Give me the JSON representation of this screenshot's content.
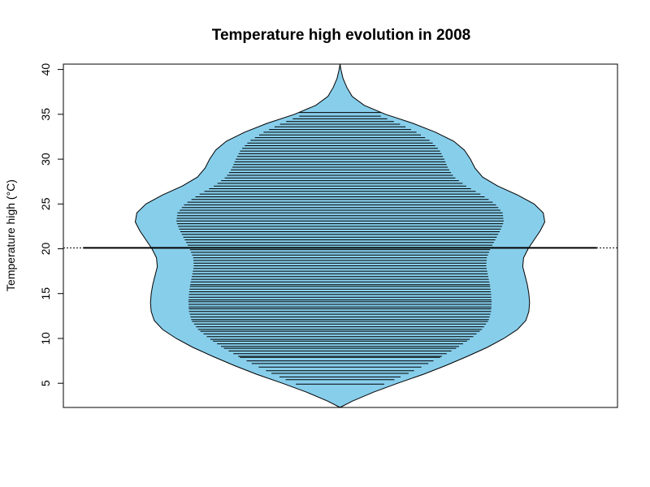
{
  "chart_data": {
    "type": "beanplot",
    "title": "Temperature high evolution in 2008",
    "ylabel": "Temperature high (°C)",
    "ylim": [
      2.3,
      40.6
    ],
    "yticks": [
      5,
      10,
      15,
      20,
      25,
      30,
      35,
      40
    ],
    "mean": 20.1,
    "colors": {
      "fill": "#87CEEB",
      "outline": "#000000",
      "lines": "#000000"
    },
    "density": [
      [
        2.3,
        0.0
      ],
      [
        3.0,
        0.08
      ],
      [
        4.0,
        0.22
      ],
      [
        5.0,
        0.38
      ],
      [
        6.0,
        0.55
      ],
      [
        7.0,
        0.7
      ],
      [
        8.0,
        0.84
      ],
      [
        9.0,
        0.97
      ],
      [
        10.0,
        1.08
      ],
      [
        11.0,
        1.17
      ],
      [
        12.0,
        1.225
      ],
      [
        13.0,
        1.245
      ],
      [
        14.0,
        1.25
      ],
      [
        15.0,
        1.245
      ],
      [
        16.0,
        1.235
      ],
      [
        17.0,
        1.22
      ],
      [
        18.0,
        1.205
      ],
      [
        19.0,
        1.21
      ],
      [
        20.0,
        1.24
      ],
      [
        21.0,
        1.28
      ],
      [
        22.0,
        1.32
      ],
      [
        23.0,
        1.35
      ],
      [
        24.0,
        1.34
      ],
      [
        25.0,
        1.28
      ],
      [
        26.0,
        1.17
      ],
      [
        27.0,
        1.04
      ],
      [
        28.0,
        0.94
      ],
      [
        29.0,
        0.89
      ],
      [
        30.0,
        0.86
      ],
      [
        31.0,
        0.82
      ],
      [
        32.0,
        0.75
      ],
      [
        33.0,
        0.63
      ],
      [
        34.0,
        0.48
      ],
      [
        35.0,
        0.3
      ],
      [
        36.0,
        0.16
      ],
      [
        37.0,
        0.08
      ],
      [
        38.0,
        0.045
      ],
      [
        39.0,
        0.02
      ],
      [
        40.0,
        0.006
      ],
      [
        40.6,
        0.0
      ]
    ],
    "observations": [
      4.9,
      5.4,
      5.7,
      6.1,
      6.4,
      6.8,
      7.2,
      7.5,
      7.9,
      8.0,
      8.3,
      8.6,
      8.9,
      9.1,
      9.4,
      9.7,
      9.9,
      10.2,
      10.5,
      10.8,
      11.0,
      11.3,
      11.6,
      11.9,
      12.1,
      12.4,
      12.7,
      13.0,
      13.3,
      13.5,
      13.8,
      14.1,
      14.3,
      14.6,
      14.9,
      15.2,
      15.5,
      15.8,
      16.0,
      16.3,
      16.6,
      16.9,
      17.2,
      17.5,
      17.8,
      18.1,
      18.4,
      18.7,
      19.0,
      19.3,
      19.6,
      19.9,
      20.1,
      20.4,
      20.7,
      21.0,
      21.3,
      21.6,
      21.9,
      22.2,
      22.5,
      22.8,
      23.1,
      23.4,
      23.7,
      24.0,
      24.3,
      24.6,
      24.9,
      25.2,
      25.5,
      25.8,
      26.1,
      26.4,
      26.7,
      27.0,
      27.3,
      27.6,
      27.9,
      28.2,
      28.5,
      28.8,
      29.1,
      29.4,
      29.7,
      30.0,
      30.3,
      30.6,
      30.9,
      31.2,
      31.5,
      31.8,
      32.1,
      32.4,
      32.7,
      33.0,
      33.3,
      33.6,
      33.9,
      34.2,
      34.5,
      34.8,
      35.2
    ]
  }
}
